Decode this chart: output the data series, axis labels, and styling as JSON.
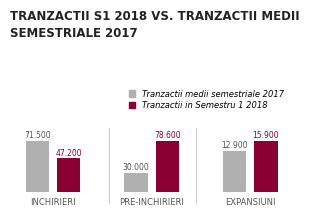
{
  "title": "TRANZACTII S1 2018 VS. TRANZACTII MEDII\nSEMESTRIALE 2017",
  "categories": [
    "INCHIRIERI",
    "PRE-INCHIRIERI",
    "EXPANSIUNI"
  ],
  "series_2017": [
    71500,
    30000,
    12900
  ],
  "series_2018": [
    47200,
    78600,
    15900
  ],
  "color_2017": "#b0b0b0",
  "color_2018": "#8b0033",
  "label_2017": "Tranzactii medii semestriale 2017",
  "label_2018": "Tranzactii in Semestru 1 2018",
  "bar_width": 0.3,
  "value_labels_2017": [
    "71.500",
    "30.000",
    "12.900"
  ],
  "value_labels_2018": [
    "47.200",
    "78.600",
    "15.900"
  ],
  "background_color": "#ffffff",
  "title_fontsize": 8.5,
  "legend_fontsize": 6.5,
  "label_fontsize": 5.5,
  "axis_label_fontsize": 6.0
}
